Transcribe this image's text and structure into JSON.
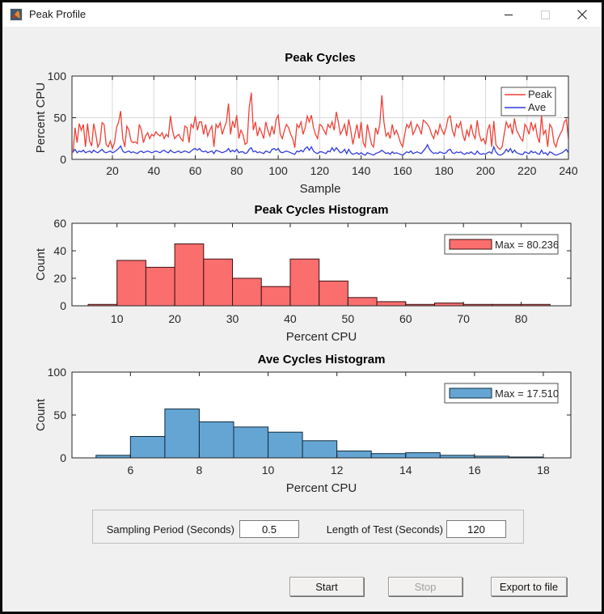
{
  "window": {
    "title": "Peak Profile"
  },
  "colors": {
    "figure_bg": "#f0f0f0",
    "plot_bg": "#ffffff",
    "axes": "#262626",
    "grid": "#d9d9d9",
    "peak_line": "#ef4136",
    "ave_line": "#2f3add",
    "peak_fill": "#fa6e6e",
    "peak_edge": "#3c1210",
    "ave_fill": "#64a5d4",
    "ave_edge": "#122b3d"
  },
  "controls_panel": {
    "sampling_label": "Sampling Period (Seconds)",
    "sampling_value": "0.5",
    "length_label": "Length of Test (Seconds)",
    "length_value": "120"
  },
  "buttons": {
    "start": "Start",
    "stop": "Stop",
    "export": "Export to file"
  },
  "chart_data": [
    {
      "type": "line",
      "title": "Peak Cycles",
      "xlabel": "Sample",
      "ylabel": "Percent CPU",
      "xlim": [
        0.5,
        240
      ],
      "ylim": [
        0,
        100
      ],
      "xticks": [
        20,
        40,
        60,
        80,
        100,
        120,
        140,
        160,
        180,
        200,
        220,
        240
      ],
      "yticks": [
        0,
        50,
        100
      ],
      "grid": true,
      "legend": [
        "Peak",
        "Ave"
      ],
      "x_start": 1,
      "series": [
        {
          "name": "Peak",
          "color": "#ef4136",
          "values": [
            8,
            38,
            20,
            43,
            35,
            42,
            15,
            43,
            22,
            16,
            43,
            30,
            15,
            20,
            44,
            42,
            18,
            15,
            22,
            13,
            20,
            38,
            45,
            58,
            25,
            15,
            40,
            35,
            22,
            20,
            21,
            19,
            42,
            35,
            20,
            28,
            32,
            25,
            30,
            28,
            33,
            30,
            28,
            32,
            25,
            30,
            27,
            52,
            35,
            25,
            28,
            30,
            25,
            22,
            40,
            38,
            20,
            42,
            38,
            52,
            35,
            45,
            45,
            30,
            42,
            28,
            35,
            40,
            15,
            42,
            38,
            44,
            30,
            38,
            45,
            67,
            30,
            46,
            38,
            53,
            25,
            35,
            30,
            18,
            20,
            62,
            80,
            35,
            45,
            28,
            38,
            32,
            25,
            45,
            35,
            28,
            40,
            30,
            48,
            53,
            30,
            25,
            35,
            42,
            38,
            30,
            25,
            14,
            42,
            38,
            45,
            30,
            38,
            52,
            45,
            53,
            38,
            30,
            25,
            42,
            40,
            35,
            30,
            42,
            38,
            45,
            35,
            57,
            45,
            30,
            35,
            42,
            28,
            48,
            35,
            18,
            30,
            42,
            25,
            45,
            20,
            15,
            42,
            30,
            18,
            15,
            38,
            30,
            42,
            77,
            45,
            28,
            32,
            25,
            42,
            30,
            35,
            28,
            20,
            15,
            30,
            42,
            38,
            45,
            30,
            35,
            42,
            38,
            30,
            47,
            45,
            42,
            38,
            30,
            25,
            35,
            30,
            42,
            35,
            30,
            38,
            50,
            52,
            35,
            28,
            42,
            38,
            45,
            30,
            22,
            35,
            28,
            42,
            30,
            25,
            47,
            30,
            22,
            25,
            18,
            35,
            42,
            15,
            46,
            18,
            14,
            12,
            15,
            30,
            45,
            38,
            42,
            30,
            49,
            35,
            30,
            25,
            22,
            42,
            38,
            30,
            45,
            35,
            42,
            28,
            20,
            52,
            30,
            35,
            15,
            42,
            38,
            20,
            15,
            25,
            30,
            35,
            45,
            48,
            25
          ]
        },
        {
          "name": "Ave",
          "color": "#2f3add",
          "values": [
            9,
            12,
            8,
            10,
            9,
            11,
            8,
            9,
            10,
            8,
            11,
            9,
            8,
            10,
            12,
            9,
            8,
            9,
            10,
            8,
            9,
            11,
            13,
            16,
            10,
            8,
            9,
            10,
            8,
            9,
            8,
            7,
            9,
            10,
            8,
            9,
            10,
            9,
            8,
            9,
            10,
            9,
            8,
            10,
            11,
            9,
            8,
            11,
            9,
            8,
            9,
            10,
            8,
            9,
            10,
            9,
            8,
            10,
            12,
            13,
            11,
            13,
            10,
            9,
            10,
            8,
            9,
            10,
            7,
            11,
            10,
            9,
            8,
            9,
            10,
            13,
            9,
            11,
            9,
            12,
            8,
            9,
            9,
            7,
            8,
            12,
            14,
            9,
            10,
            8,
            9,
            8,
            7,
            10,
            9,
            8,
            12,
            13,
            11,
            13,
            9,
            8,
            9,
            10,
            9,
            8,
            7,
            6,
            10,
            9,
            11,
            9,
            13,
            15,
            11,
            15,
            10,
            8,
            7,
            9,
            9,
            8,
            7,
            10,
            9,
            14,
            10,
            14,
            11,
            8,
            9,
            12,
            7,
            12,
            8,
            6,
            7,
            8,
            6,
            8,
            6,
            5,
            8,
            7,
            6,
            5,
            7,
            8,
            9,
            11,
            9,
            7,
            8,
            6,
            9,
            7,
            8,
            7,
            6,
            5,
            7,
            9,
            8,
            10,
            7,
            8,
            9,
            8,
            7,
            10,
            13,
            17.5,
            12,
            9,
            7,
            8,
            7,
            9,
            8,
            7,
            8,
            11,
            12,
            8,
            7,
            9,
            8,
            9,
            7,
            6,
            8,
            7,
            9,
            7,
            6,
            10,
            7,
            6,
            7,
            6,
            8,
            9,
            7,
            15,
            9,
            6,
            5,
            6,
            8,
            12,
            9,
            13,
            8,
            11,
            8,
            7,
            6,
            6,
            9,
            8,
            7,
            10,
            8,
            9,
            7,
            6,
            11,
            7,
            8,
            5,
            9,
            8,
            6,
            5,
            6,
            7,
            8,
            10,
            12,
            8
          ]
        }
      ]
    },
    {
      "type": "histogram",
      "title": "Peak Cycles Histogram",
      "xlabel": "Percent CPU",
      "ylabel": "Count",
      "xlim": [
        2.2,
        88.6
      ],
      "ylim": [
        0,
        60
      ],
      "xticks": [
        10,
        20,
        30,
        40,
        50,
        60,
        70,
        80
      ],
      "yticks": [
        0,
        20,
        40,
        60
      ],
      "bin_start": 5,
      "bin_width": 5,
      "counts": [
        1,
        33,
        28,
        45,
        34,
        20,
        14,
        34,
        18,
        6,
        3,
        1,
        2,
        1,
        1,
        1
      ],
      "bar_color": "#fa6e6e",
      "edge_color": "#3c1210",
      "legend_label": "Max = 80.236"
    },
    {
      "type": "histogram",
      "title": "Ave Cycles Histogram",
      "xlabel": "Percent CPU",
      "ylabel": "Count",
      "xlim": [
        4.3,
        18.8
      ],
      "ylim": [
        0,
        100
      ],
      "xticks": [
        6,
        8,
        10,
        12,
        14,
        16,
        18
      ],
      "yticks": [
        0,
        50,
        100
      ],
      "bin_start": 5,
      "bin_width": 1,
      "counts": [
        3,
        25,
        57,
        42,
        36,
        30,
        20,
        8,
        5,
        6,
        3,
        2,
        1
      ],
      "bar_color": "#64a5d4",
      "edge_color": "#122b3d",
      "legend_label": "Max = 17.510"
    }
  ]
}
